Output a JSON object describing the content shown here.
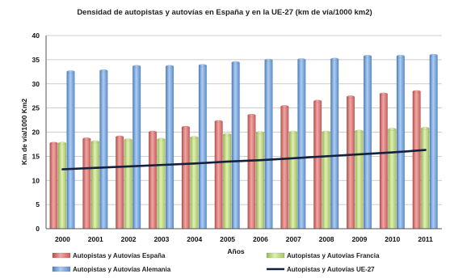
{
  "chart_data": {
    "type": "bar",
    "title": "Densidad de autopistas y autovías en España y en la UE-27 (km de vía/1000 km2)",
    "xlabel": "Años",
    "ylabel": "Km de vía/1000 Km2",
    "ylim": [
      0,
      40
    ],
    "yticks": [
      "0",
      "5",
      "10",
      "15",
      "20",
      "25",
      "30",
      "35",
      "40"
    ],
    "grid": true,
    "legend_position": "bottom",
    "categories": [
      "2000",
      "2001",
      "2002",
      "2003",
      "2004",
      "2005",
      "2006",
      "2007",
      "2008",
      "2009",
      "2010",
      "2011"
    ],
    "series": [
      {
        "name": "Autopistas y Autovías España",
        "type": "bar",
        "color": "#d9716d",
        "values": [
          17.7,
          18.6,
          19.0,
          20.0,
          21.0,
          22.2,
          23.5,
          25.3,
          26.4,
          27.3,
          27.9,
          28.4
        ]
      },
      {
        "name": "Autopistas y Autovías Francia",
        "type": "bar",
        "color": "#bcd77a",
        "values": [
          17.7,
          18.0,
          18.4,
          18.5,
          18.9,
          19.5,
          19.9,
          20.0,
          20.0,
          20.2,
          20.6,
          20.8
        ]
      },
      {
        "name": "Autopistas y Autovías Alemania",
        "type": "bar",
        "color": "#6f9fd8",
        "values": [
          32.5,
          32.7,
          33.6,
          33.6,
          33.8,
          34.4,
          34.9,
          35.0,
          35.1,
          35.7,
          35.7,
          35.9
        ]
      },
      {
        "name": "Autopistas y Autovías UE-27",
        "type": "line",
        "color": "#14213d",
        "values": [
          12.3,
          12.6,
          12.9,
          13.2,
          13.5,
          13.9,
          14.2,
          14.6,
          15.0,
          15.4,
          15.8,
          16.3
        ]
      }
    ]
  }
}
